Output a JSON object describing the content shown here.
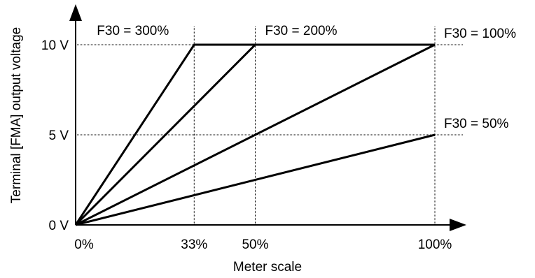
{
  "chart_data": {
    "type": "line",
    "xlabel": "Meter scale",
    "ylabel": "Terminal [FMA] output voltage",
    "x_ticks": [
      {
        "value": 0,
        "label": "0%"
      },
      {
        "value": 33,
        "label": "33%"
      },
      {
        "value": 50,
        "label": "50%"
      },
      {
        "value": 100,
        "label": "100%"
      }
    ],
    "y_ticks": [
      {
        "value": 0,
        "label": "0 V"
      },
      {
        "value": 5,
        "label": "5 V"
      },
      {
        "value": 10,
        "label": "10 V"
      }
    ],
    "xlim": [
      0,
      100
    ],
    "ylim": [
      0,
      10
    ],
    "grid": "dotted at tick values",
    "series": [
      {
        "name": "F30 = 300%",
        "x": [
          0,
          33,
          100
        ],
        "y": [
          0,
          10,
          10
        ]
      },
      {
        "name": "F30 = 200%",
        "x": [
          0,
          50,
          100
        ],
        "y": [
          0,
          10,
          10
        ]
      },
      {
        "name": "F30 = 100%",
        "x": [
          0,
          100
        ],
        "y": [
          0,
          10
        ]
      },
      {
        "name": "F30 = 50%",
        "x": [
          0,
          100
        ],
        "y": [
          0,
          5
        ]
      }
    ],
    "colors": {
      "line": "#000000",
      "grid": "#000000"
    }
  }
}
